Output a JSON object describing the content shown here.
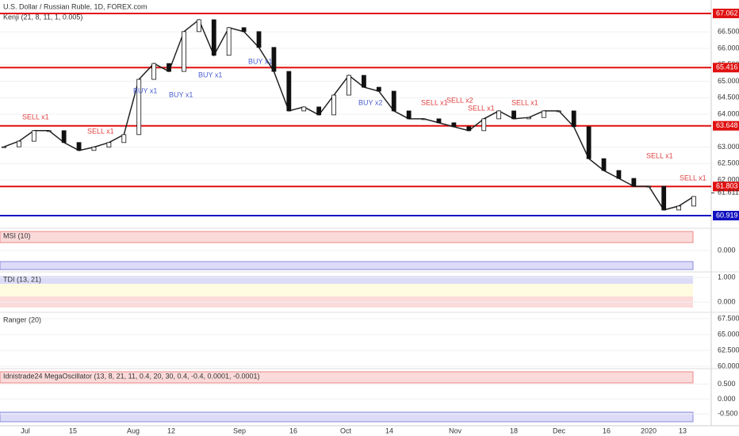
{
  "header": {
    "title": "U.S. Dollar / Russian Ruble, 1D, FOREX.com",
    "indicator": "Kenji (21, 8, 11, 1, 0.005)"
  },
  "price_panel": {
    "ylim": [
      60.606,
      67.47
    ],
    "yticks": [
      {
        "value": 66.5,
        "label": "66.500"
      },
      {
        "value": 66.0,
        "label": "66.000"
      },
      {
        "value": 65.5,
        "label": "65.500"
      },
      {
        "value": 65.0,
        "label": "65.000"
      },
      {
        "value": 64.5,
        "label": "64.500"
      },
      {
        "value": 64.0,
        "label": "64.000"
      },
      {
        "value": 63.0,
        "label": "63.000"
      },
      {
        "value": 62.5,
        "label": "62.500"
      },
      {
        "value": 62.0,
        "label": "62.000"
      }
    ],
    "levels": [
      {
        "value": 67.062,
        "label": "67.062",
        "color": "#e01010"
      },
      {
        "value": 65.416,
        "label": "65.416",
        "color": "#e01010"
      },
      {
        "value": 63.648,
        "label": "63.648",
        "color": "#e01010"
      },
      {
        "value": 61.803,
        "label": "61.803",
        "color": "#e01010"
      },
      {
        "value": 60.919,
        "label": "60.919",
        "color": "#1010c0"
      }
    ],
    "last": {
      "value": 61.611,
      "label": "61.611"
    },
    "close": [
      63.01,
      63.18,
      63.5,
      63.5,
      63.14,
      62.9,
      63.0,
      63.14,
      63.38,
      65.06,
      65.54,
      65.3,
      66.51,
      66.87,
      65.79,
      66.63,
      66.51,
      66.03,
      65.3,
      64.1,
      64.22,
      63.98,
      64.58,
      65.18,
      64.82,
      64.7,
      64.1,
      63.86,
      63.86,
      63.74,
      63.62,
      63.5,
      63.86,
      64.1,
      63.86,
      63.9,
      64.1,
      64.1,
      63.62,
      62.65,
      62.29,
      62.05,
      61.81,
      61.81,
      61.09,
      61.21,
      61.5
    ],
    "signals": [
      "SELL x1",
      "SELL x1",
      "BUY x1",
      "BUY x1",
      "BUY x1",
      "BUY x1",
      "BUY x2",
      "SELL x1",
      "SELL x2",
      "SELL x1",
      "SELL x1",
      "SELL x1",
      "SELL x1"
    ]
  },
  "panels": [
    {
      "title": "MSI (10)",
      "ylim": [
        -1,
        1
      ],
      "yticks": [
        {
          "value": 0,
          "label": "0.000"
        }
      ]
    },
    {
      "title": "TDI (13, 21)",
      "ylim": [
        -0.35,
        1.16
      ],
      "yticks": [
        {
          "value": 1,
          "label": "1.000"
        },
        {
          "value": 0,
          "label": "0.000"
        }
      ]
    },
    {
      "title": "Ranger (20)",
      "ylim": [
        59.5,
        68.25
      ],
      "yticks": [
        {
          "value": 67.5,
          "label": "67.500"
        },
        {
          "value": 65,
          "label": "65.000"
        },
        {
          "value": 62.5,
          "label": "62.500"
        },
        {
          "value": 60,
          "label": "60.000"
        }
      ]
    },
    {
      "title": "Idnistrade24 MegaOscillator (13, 8, 21, 11, 0.4, 20, 30, 0.4, -0.4, 0.0001, -0.0001)",
      "ylim": [
        -0.87,
        0.97
      ],
      "yticks": [
        {
          "value": 0.5,
          "label": "0.500"
        },
        {
          "value": 0,
          "label": "0.000"
        },
        {
          "value": -0.5,
          "label": "-0.500"
        }
      ]
    }
  ],
  "x_labels": [
    "Jul",
    "15",
    "Aug",
    "12",
    "Sep",
    "16",
    "Oct",
    "14",
    "Nov",
    "18",
    "Dec",
    "16",
    "2020",
    "13"
  ]
}
